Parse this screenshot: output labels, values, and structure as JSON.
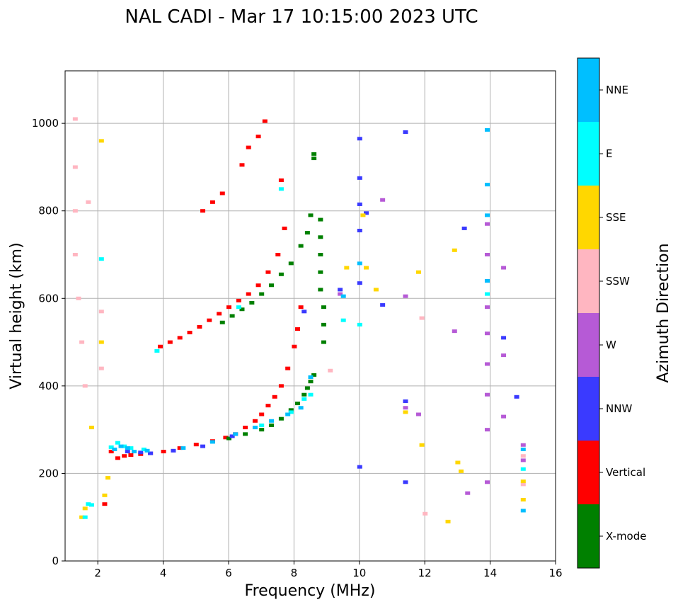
{
  "chart_data": {
    "type": "scatter",
    "title": "NAL CADI - Mar 17 10:15:00 2023 UTC",
    "xlabel": "Frequency (MHz)",
    "ylabel": "Virtual height (km)",
    "xlim": [
      1,
      16
    ],
    "ylim": [
      0,
      1120
    ],
    "xticks": [
      2,
      4,
      6,
      8,
      10,
      12,
      14,
      16
    ],
    "yticks": [
      0,
      200,
      400,
      600,
      800,
      1000
    ],
    "grid": true,
    "colorbar": {
      "label": "Azimuth Direction",
      "categories": [
        {
          "name": "X-mode",
          "color": "#008000"
        },
        {
          "name": "Vertical",
          "color": "#ff0000"
        },
        {
          "name": "NNW",
          "color": "#3a3aff"
        },
        {
          "name": "W",
          "color": "#b65ad6"
        },
        {
          "name": "SSW",
          "color": "#ffb6c1"
        },
        {
          "name": "SSE",
          "color": "#ffd700"
        },
        {
          "name": "E",
          "color": "#00ffff"
        },
        {
          "name": "NNE",
          "color": "#00bfff"
        }
      ]
    },
    "series": [
      {
        "name": "Vertical",
        "category": "Vertical",
        "x": [
          2.2,
          2.4,
          2.6,
          2.8,
          3.0,
          3.3,
          3.6,
          4.0,
          4.5,
          5.0,
          5.5,
          5.9,
          6.2,
          6.5,
          6.8,
          7.0,
          7.2,
          7.4,
          7.6,
          7.8,
          8.0,
          8.1,
          8.2,
          3.9,
          4.2,
          4.5,
          4.8,
          5.1,
          5.4,
          5.7,
          6.0,
          6.3,
          6.6,
          6.9,
          7.2,
          7.5,
          7.7,
          5.2,
          5.5,
          5.8,
          6.4,
          6.6,
          6.9,
          7.1,
          7.6
        ],
        "y": [
          130,
          250,
          235,
          240,
          242,
          244,
          246,
          250,
          258,
          266,
          274,
          282,
          290,
          305,
          320,
          335,
          355,
          375,
          400,
          440,
          490,
          530,
          580,
          490,
          500,
          510,
          522,
          535,
          550,
          565,
          580,
          595,
          610,
          630,
          660,
          700,
          760,
          800,
          820,
          840,
          905,
          945,
          970,
          1005,
          870
        ]
      },
      {
        "name": "X-mode",
        "category": "X-mode",
        "x": [
          6.0,
          6.5,
          7.0,
          7.3,
          7.6,
          7.9,
          8.1,
          8.3,
          8.4,
          8.5,
          8.6,
          8.6,
          5.8,
          6.1,
          6.4,
          6.7,
          7.0,
          7.3,
          7.6,
          7.9,
          8.2,
          8.4,
          8.5,
          8.6,
          8.8,
          8.8,
          8.8,
          8.8,
          8.8,
          8.9,
          8.9,
          8.9
        ],
        "y": [
          280,
          290,
          300,
          310,
          325,
          345,
          360,
          380,
          395,
          410,
          425,
          930,
          545,
          560,
          575,
          590,
          610,
          630,
          655,
          680,
          720,
          750,
          790,
          920,
          780,
          740,
          700,
          660,
          620,
          580,
          540,
          500
        ]
      },
      {
        "name": "NNW",
        "category": "NNW",
        "x": [
          2.9,
          3.3,
          3.6,
          4.3,
          5.2,
          6.1,
          8.3,
          9.4,
          10.0,
          10.0,
          10.0,
          10.0,
          10.0,
          10.0,
          10.2,
          10.7,
          11.4,
          11.4,
          11.4,
          13.2,
          14.4,
          14.8
        ],
        "y": [
          250,
          248,
          246,
          252,
          262,
          285,
          570,
          620,
          965,
          875,
          815,
          755,
          635,
          215,
          795,
          585,
          365,
          180,
          980,
          760,
          510,
          375
        ]
      },
      {
        "name": "W",
        "category": "W",
        "x": [
          9.4,
          10.7,
          11.4,
          11.4,
          11.8,
          12.9,
          13.3,
          13.9,
          13.9,
          13.9,
          13.9,
          13.9,
          13.9,
          13.9,
          13.9,
          13.9,
          14.4,
          14.4,
          14.4,
          15.0,
          15.0
        ],
        "y": [
          610,
          825,
          605,
          350,
          335,
          525,
          155,
          770,
          700,
          640,
          580,
          520,
          450,
          380,
          300,
          180,
          670,
          470,
          330,
          265,
          230
        ]
      },
      {
        "name": "SSW",
        "category": "SSW",
        "x": [
          1.3,
          1.3,
          1.3,
          1.3,
          1.4,
          1.5,
          1.6,
          1.7,
          2.1,
          2.1,
          9.1,
          11.9,
          12.0,
          15.0,
          15.0
        ],
        "y": [
          1010,
          900,
          800,
          700,
          600,
          500,
          400,
          820,
          570,
          440,
          435,
          555,
          108,
          240,
          175
        ]
      },
      {
        "name": "SSE",
        "category": "SSE",
        "x": [
          1.5,
          1.6,
          1.8,
          2.1,
          2.1,
          2.2,
          2.3,
          9.6,
          10.1,
          10.2,
          10.5,
          11.4,
          11.8,
          11.9,
          12.7,
          12.9,
          13.0,
          13.1,
          15.0,
          15.0
        ],
        "y": [
          100,
          120,
          305,
          960,
          500,
          150,
          190,
          670,
          790,
          670,
          620,
          340,
          660,
          265,
          90,
          710,
          225,
          205,
          182,
          140
        ]
      },
      {
        "name": "E",
        "category": "E",
        "x": [
          1.6,
          1.7,
          1.8,
          2.1,
          2.4,
          2.6,
          2.8,
          3.0,
          3.4,
          3.8,
          6.3,
          7.0,
          7.6,
          7.9,
          8.3,
          8.5,
          9.5,
          10.0,
          13.9,
          15.0
        ],
        "y": [
          100,
          130,
          128,
          690,
          260,
          270,
          262,
          258,
          255,
          480,
          580,
          310,
          850,
          340,
          370,
          380,
          550,
          540,
          610,
          210
        ]
      },
      {
        "name": "NNE",
        "category": "NNE",
        "x": [
          2.5,
          2.7,
          2.9,
          3.1,
          3.5,
          4.6,
          5.5,
          6.2,
          6.8,
          7.3,
          7.8,
          8.2,
          8.5,
          9.5,
          10.0,
          13.9,
          13.9,
          13.9,
          13.9,
          15.0,
          15.0
        ],
        "y": [
          255,
          262,
          258,
          250,
          252,
          258,
          272,
          290,
          305,
          320,
          335,
          350,
          420,
          605,
          680,
          985,
          860,
          790,
          640,
          255,
          115
        ]
      }
    ]
  }
}
